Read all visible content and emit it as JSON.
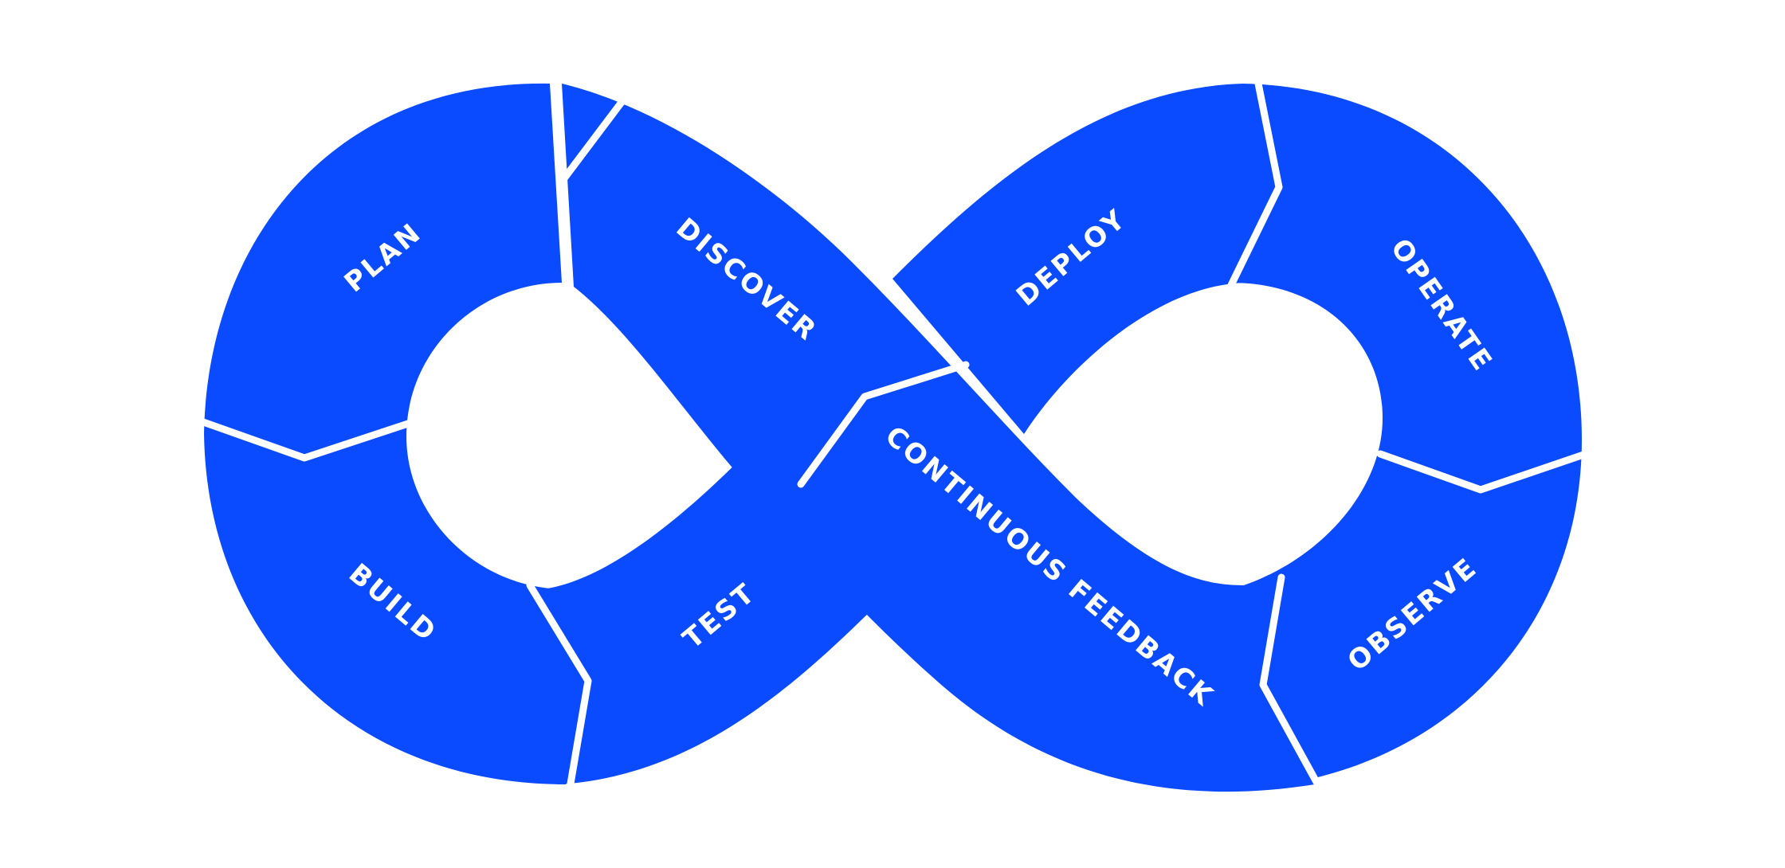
{
  "diagram": {
    "colors": {
      "segment": "#0a4bff",
      "segment_dark": "#0b3cd0",
      "gap": "#ffffff",
      "label": "#ffffff"
    },
    "labels": {
      "plan": "PLAN",
      "discover": "DISCOVER",
      "build": "BUILD",
      "test": "TEST",
      "deploy": "DEPLOY",
      "operate": "OPERATE",
      "observe": "OBSERVE",
      "continuous_feedback": "CONTINUOUS FEEDBACK"
    }
  }
}
